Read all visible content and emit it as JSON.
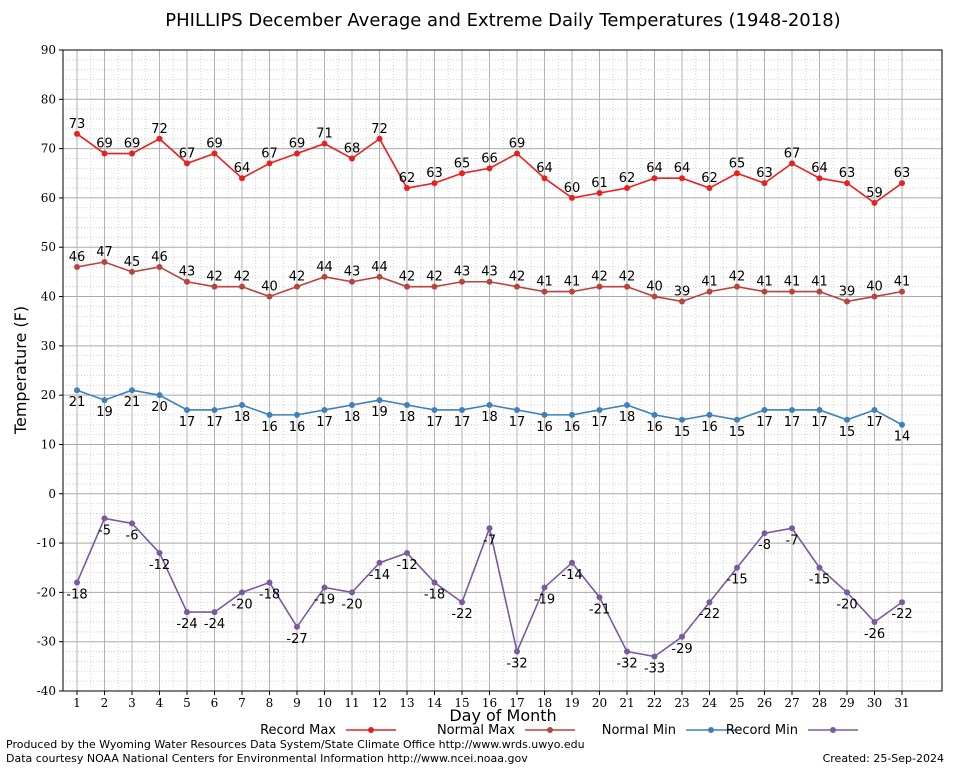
{
  "chart_data": {
    "type": "line",
    "title": "PHILLIPS December Average and Extreme Daily Temperatures (1948-2018)",
    "xlabel": "Day of Month",
    "ylabel": "Temperature (F)",
    "ylim": [
      -40,
      90
    ],
    "yticks": [
      90,
      80,
      70,
      60,
      50,
      40,
      30,
      20,
      10,
      0,
      -10,
      -20,
      -30,
      -40
    ],
    "x": [
      1,
      2,
      3,
      4,
      5,
      6,
      7,
      8,
      9,
      10,
      11,
      12,
      13,
      14,
      15,
      16,
      17,
      18,
      19,
      20,
      21,
      22,
      23,
      24,
      25,
      26,
      27,
      28,
      29,
      30,
      31
    ],
    "grid": true,
    "legend_position": "bottom",
    "series": [
      {
        "name": "Record Max",
        "color": "#e8201f",
        "label_pos": "above",
        "values": [
          73,
          69,
          69,
          72,
          67,
          69,
          64,
          67,
          69,
          71,
          68,
          72,
          62,
          63,
          65,
          66,
          69,
          64,
          60,
          61,
          62,
          64,
          64,
          62,
          65,
          63,
          67,
          64,
          63,
          59,
          63
        ]
      },
      {
        "name": "Normal Max",
        "color": "#b8443e",
        "label_pos": "above",
        "values": [
          46,
          47,
          45,
          46,
          43,
          42,
          42,
          40,
          42,
          44,
          43,
          44,
          42,
          42,
          43,
          43,
          42,
          41,
          41,
          42,
          42,
          40,
          39,
          41,
          42,
          41,
          41,
          41,
          39,
          40,
          41
        ]
      },
      {
        "name": "Normal Min",
        "color": "#3f7fba",
        "label_pos": "below",
        "values": [
          21,
          19,
          21,
          20,
          17,
          17,
          18,
          16,
          16,
          17,
          18,
          19,
          18,
          17,
          17,
          18,
          17,
          16,
          16,
          17,
          18,
          16,
          15,
          16,
          15,
          17,
          17,
          17,
          15,
          17,
          14
        ]
      },
      {
        "name": "Record Min",
        "color": "#7b59a0",
        "label_pos": "below",
        "values": [
          -18,
          -5,
          -6,
          -12,
          -24,
          -24,
          -20,
          -18,
          -27,
          -19,
          -20,
          -14,
          -12,
          -18,
          -22,
          -7,
          -32,
          -19,
          -14,
          -21,
          -32,
          -33,
          -29,
          -22,
          -15,
          -8,
          -7,
          -15,
          -20,
          -26,
          -22
        ]
      }
    ]
  },
  "footer": {
    "line1": "Produced by the Wyoming Water Resources Data System/State Climate Office http://www.wrds.uwyo.edu",
    "line2": "Data courtesy NOAA National Centers for Environmental Information http://www.ncei.noaa.gov",
    "created": "Created:  25-Sep-2024"
  }
}
